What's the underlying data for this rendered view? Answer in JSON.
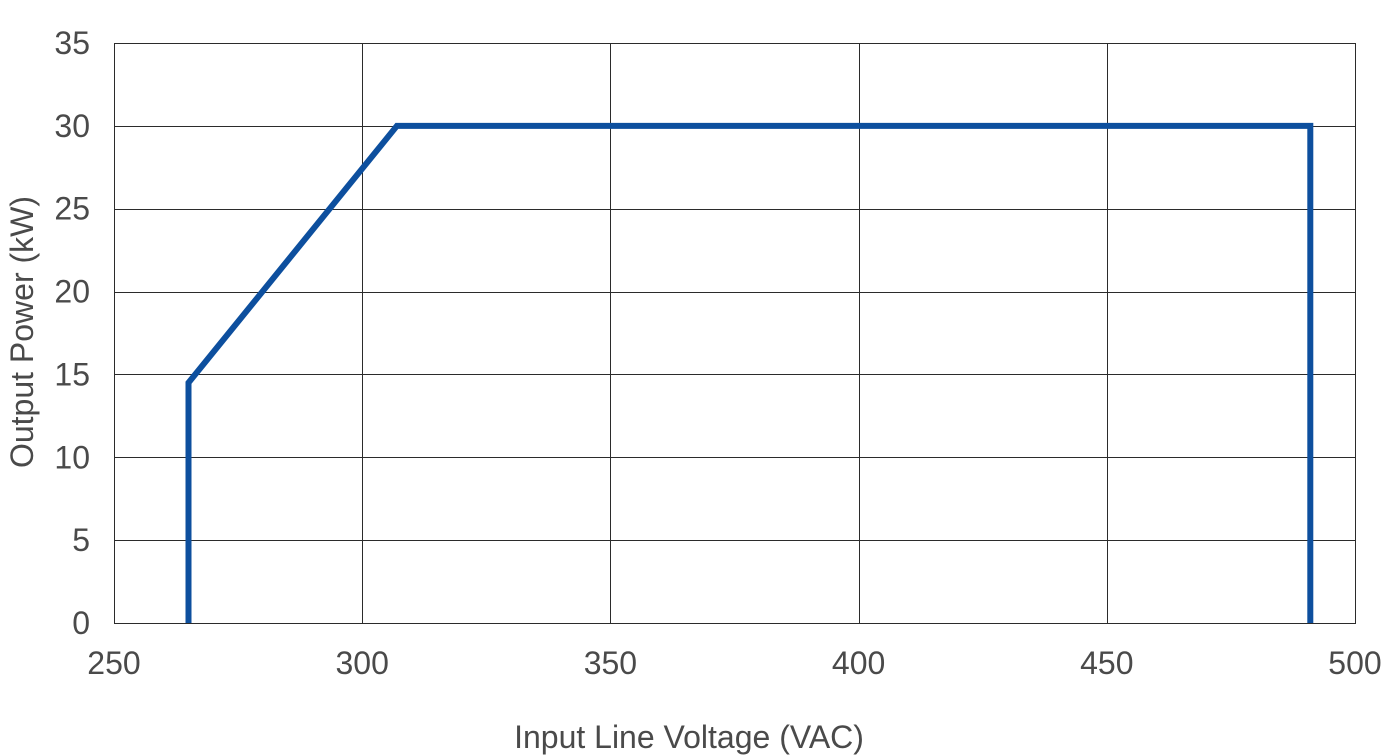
{
  "chart_data": {
    "type": "line",
    "title": "",
    "xlabel": "Input Line Voltage (VAC)",
    "ylabel": "Output Power (kW)",
    "xlim": [
      250,
      500
    ],
    "ylim": [
      0,
      35
    ],
    "xticks": [
      250,
      300,
      350,
      400,
      450,
      500
    ],
    "yticks": [
      0,
      5,
      10,
      15,
      20,
      25,
      30,
      35
    ],
    "grid": true,
    "legend": "none",
    "series": [
      {
        "color": "#0d4f9e",
        "points": [
          {
            "x": 265,
            "y": 0
          },
          {
            "x": 265,
            "y": 14.5
          },
          {
            "x": 307,
            "y": 30
          },
          {
            "x": 491,
            "y": 30
          },
          {
            "x": 491,
            "y": 0
          }
        ]
      }
    ]
  }
}
